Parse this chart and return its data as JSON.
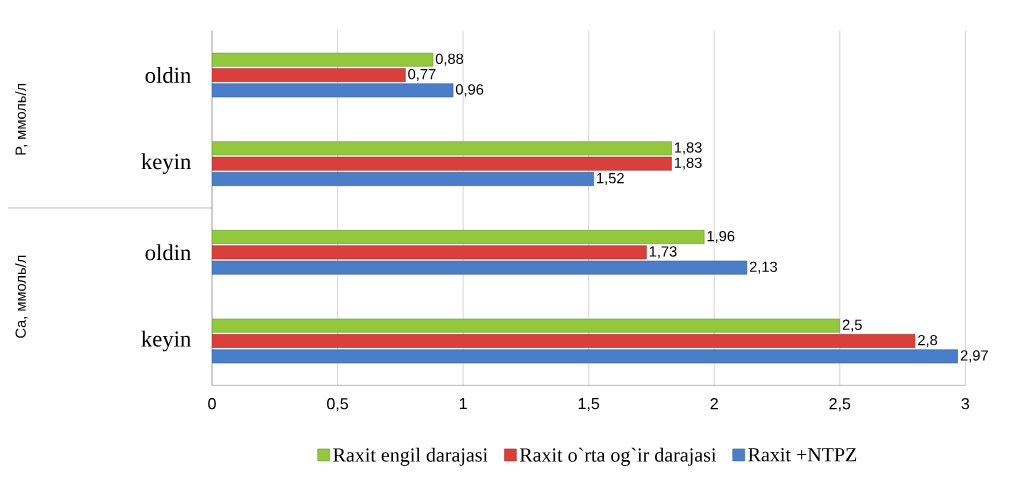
{
  "chart_data": {
    "type": "bar",
    "orientation": "horizontal",
    "categories": [
      "oldin",
      "keyin",
      "oldin",
      "keyin"
    ],
    "series": [
      {
        "name": "Raxit engil darajasi",
        "color": "#92c83e",
        "values": [
          0.88,
          1.83,
          1.96,
          2.5
        ],
        "value_labels": [
          "0,88",
          "1,83",
          "1,96",
          "2,5"
        ]
      },
      {
        "name": "Raxit o`rta og`ir darajasi",
        "color": "#d9403b",
        "values": [
          0.77,
          1.83,
          1.73,
          2.8
        ],
        "value_labels": [
          "0,77",
          "1,83",
          "1,73",
          "2,8"
        ]
      },
      {
        "name": "Raxit +NTPZ",
        "color": "#4a7ec8",
        "values": [
          0.96,
          1.52,
          2.13,
          2.97
        ],
        "value_labels": [
          "0,96",
          "1,52",
          "2,13",
          "2,97"
        ]
      }
    ],
    "xlim": [
      0,
      3
    ],
    "xticks": [
      0,
      {
        "value": 0.5,
        "label": "0,5"
      },
      1,
      {
        "value": 1.5,
        "label": "1,5"
      },
      2,
      {
        "value": 2.5,
        "label": "2,5"
      },
      3
    ],
    "grid": "x",
    "legend": "bottom",
    "annotations": [
      "P, ммоль/л",
      "Ca, ммоль/л"
    ]
  }
}
